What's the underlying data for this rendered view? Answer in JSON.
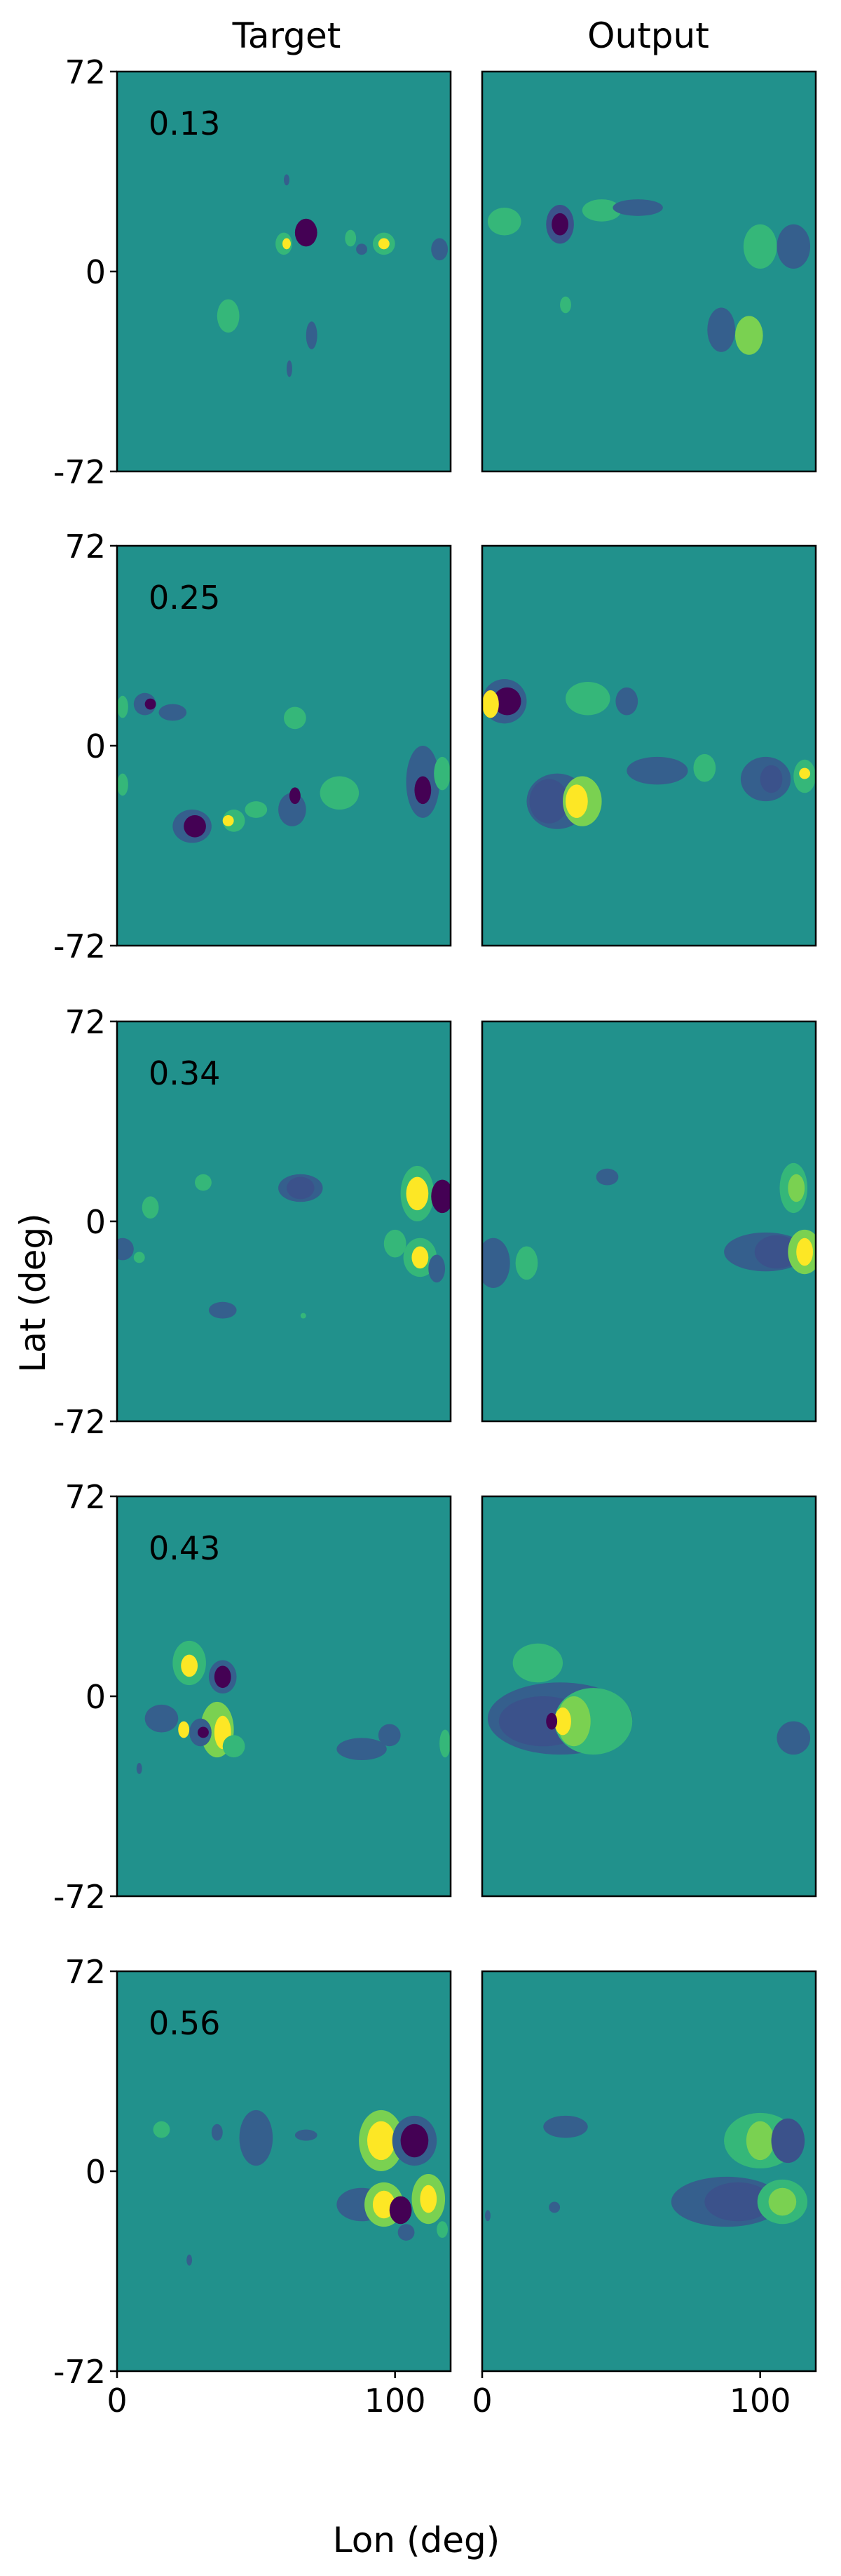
{
  "figure": {
    "column_titles": [
      "Target",
      "Output"
    ],
    "xlabel": "Lon (deg)",
    "ylabel": "Lat (deg)",
    "colors": {
      "background": "#21918c",
      "dark": "#440154",
      "blue_dark": "#3b528b",
      "blue": "#355f8d",
      "green": "#35b779",
      "lime": "#7ad151",
      "yellow": "#fde725",
      "frame": "#000000"
    }
  },
  "chart_data": {
    "type": "heatmap",
    "colormap": "viridis",
    "xlim": [
      0,
      120
    ],
    "ylim": [
      -72,
      72
    ],
    "xticks": [
      "0",
      "100"
    ],
    "yticks": [
      "72",
      "0",
      "-72"
    ],
    "rows": [
      {
        "label": "0.13",
        "target": [
          {
            "x": 68,
            "y": 14,
            "rx": 4,
            "ry": 5,
            "level": "dark"
          },
          {
            "x": 60,
            "y": 10,
            "rx": 3,
            "ry": 4,
            "level": "green"
          },
          {
            "x": 61,
            "y": 10,
            "rx": 1.5,
            "ry": 2,
            "level": "yellow"
          },
          {
            "x": 96,
            "y": 10,
            "rx": 4,
            "ry": 4,
            "level": "green"
          },
          {
            "x": 96,
            "y": 10,
            "rx": 2,
            "ry": 2,
            "level": "yellow"
          },
          {
            "x": 84,
            "y": 12,
            "rx": 2,
            "ry": 3,
            "level": "green"
          },
          {
            "x": 88,
            "y": 8,
            "rx": 2,
            "ry": 2,
            "level": "blue"
          },
          {
            "x": 116,
            "y": 8,
            "rx": 3,
            "ry": 4,
            "level": "blue"
          },
          {
            "x": 61,
            "y": 33,
            "rx": 1,
            "ry": 2,
            "level": "blue"
          },
          {
            "x": 40,
            "y": -16,
            "rx": 4,
            "ry": 6,
            "level": "green"
          },
          {
            "x": 70,
            "y": -23,
            "rx": 2,
            "ry": 5,
            "level": "blue"
          },
          {
            "x": 62,
            "y": -35,
            "rx": 1,
            "ry": 3,
            "level": "blue"
          }
        ],
        "output": [
          {
            "x": 8,
            "y": 18,
            "rx": 6,
            "ry": 5,
            "level": "green"
          },
          {
            "x": 28,
            "y": 17,
            "rx": 5,
            "ry": 7,
            "level": "blue_dark"
          },
          {
            "x": 28,
            "y": 17,
            "rx": 3,
            "ry": 4,
            "level": "dark"
          },
          {
            "x": 43,
            "y": 22,
            "rx": 7,
            "ry": 4,
            "level": "green"
          },
          {
            "x": 56,
            "y": 23,
            "rx": 9,
            "ry": 3,
            "level": "blue"
          },
          {
            "x": 100,
            "y": 9,
            "rx": 6,
            "ry": 8,
            "level": "green"
          },
          {
            "x": 112,
            "y": 9,
            "rx": 6,
            "ry": 8,
            "level": "blue"
          },
          {
            "x": 30,
            "y": -12,
            "rx": 2,
            "ry": 3,
            "level": "green"
          },
          {
            "x": 86,
            "y": -21,
            "rx": 5,
            "ry": 8,
            "level": "blue"
          },
          {
            "x": 96,
            "y": -23,
            "rx": 5,
            "ry": 7,
            "level": "lime"
          }
        ]
      },
      {
        "label": "0.25",
        "target": [
          {
            "x": 10,
            "y": 15,
            "rx": 4,
            "ry": 4,
            "level": "blue"
          },
          {
            "x": 12,
            "y": 15,
            "rx": 2,
            "ry": 2,
            "level": "dark"
          },
          {
            "x": 20,
            "y": 12,
            "rx": 5,
            "ry": 3,
            "level": "blue"
          },
          {
            "x": 2,
            "y": 14,
            "rx": 2,
            "ry": 4,
            "level": "green"
          },
          {
            "x": 64,
            "y": 10,
            "rx": 4,
            "ry": 4,
            "level": "green"
          },
          {
            "x": 2,
            "y": -14,
            "rx": 2,
            "ry": 4,
            "level": "green"
          },
          {
            "x": 27,
            "y": -29,
            "rx": 7,
            "ry": 6,
            "level": "blue"
          },
          {
            "x": 28,
            "y": -29,
            "rx": 4,
            "ry": 4,
            "level": "dark"
          },
          {
            "x": 42,
            "y": -27,
            "rx": 4,
            "ry": 4,
            "level": "green"
          },
          {
            "x": 40,
            "y": -27,
            "rx": 2,
            "ry": 2,
            "level": "yellow"
          },
          {
            "x": 50,
            "y": -23,
            "rx": 4,
            "ry": 3,
            "level": "green"
          },
          {
            "x": 63,
            "y": -23,
            "rx": 5,
            "ry": 6,
            "level": "blue"
          },
          {
            "x": 64,
            "y": -18,
            "rx": 2,
            "ry": 3,
            "level": "dark"
          },
          {
            "x": 80,
            "y": -17,
            "rx": 7,
            "ry": 6,
            "level": "green"
          },
          {
            "x": 110,
            "y": -13,
            "rx": 6,
            "ry": 13,
            "level": "blue"
          },
          {
            "x": 110,
            "y": -16,
            "rx": 3,
            "ry": 5,
            "level": "dark"
          },
          {
            "x": 117,
            "y": -10,
            "rx": 3,
            "ry": 6,
            "level": "green"
          }
        ],
        "output": [
          {
            "x": 8,
            "y": 16,
            "rx": 8,
            "ry": 8,
            "level": "blue"
          },
          {
            "x": 9,
            "y": 16,
            "rx": 5,
            "ry": 5,
            "level": "dark"
          },
          {
            "x": 3,
            "y": 15,
            "rx": 3,
            "ry": 5,
            "level": "yellow"
          },
          {
            "x": 38,
            "y": 17,
            "rx": 8,
            "ry": 6,
            "level": "green"
          },
          {
            "x": 52,
            "y": 16,
            "rx": 4,
            "ry": 5,
            "level": "blue"
          },
          {
            "x": 27,
            "y": -20,
            "rx": 11,
            "ry": 10,
            "level": "blue"
          },
          {
            "x": 24,
            "y": -20,
            "rx": 7,
            "ry": 8,
            "level": "blue_dark"
          },
          {
            "x": 36,
            "y": -20,
            "rx": 7,
            "ry": 9,
            "level": "lime"
          },
          {
            "x": 34,
            "y": -20,
            "rx": 4,
            "ry": 6,
            "level": "yellow"
          },
          {
            "x": 63,
            "y": -9,
            "rx": 11,
            "ry": 5,
            "level": "blue"
          },
          {
            "x": 80,
            "y": -8,
            "rx": 4,
            "ry": 5,
            "level": "green"
          },
          {
            "x": 102,
            "y": -12,
            "rx": 9,
            "ry": 8,
            "level": "blue"
          },
          {
            "x": 104,
            "y": -12,
            "rx": 4,
            "ry": 5,
            "level": "blue_dark"
          },
          {
            "x": 116,
            "y": -11,
            "rx": 4,
            "ry": 6,
            "level": "green"
          },
          {
            "x": 116,
            "y": -10,
            "rx": 2,
            "ry": 2,
            "level": "yellow"
          }
        ]
      },
      {
        "label": "0.34",
        "target": [
          {
            "x": 12,
            "y": 5,
            "rx": 3,
            "ry": 4,
            "level": "green"
          },
          {
            "x": 31,
            "y": 14,
            "rx": 3,
            "ry": 3,
            "level": "green"
          },
          {
            "x": 66,
            "y": 12,
            "rx": 8,
            "ry": 5,
            "level": "blue"
          },
          {
            "x": 66,
            "y": 12,
            "rx": 5,
            "ry": 4,
            "level": "blue_dark"
          },
          {
            "x": 108,
            "y": 10,
            "rx": 6,
            "ry": 10,
            "level": "green"
          },
          {
            "x": 108,
            "y": 10,
            "rx": 4,
            "ry": 6,
            "level": "yellow"
          },
          {
            "x": 117,
            "y": 9,
            "rx": 4,
            "ry": 6,
            "level": "dark"
          },
          {
            "x": 100,
            "y": -8,
            "rx": 4,
            "ry": 5,
            "level": "green"
          },
          {
            "x": 109,
            "y": -13,
            "rx": 6,
            "ry": 7,
            "level": "green"
          },
          {
            "x": 109,
            "y": -13,
            "rx": 3,
            "ry": 4,
            "level": "yellow"
          },
          {
            "x": 115,
            "y": -17,
            "rx": 3,
            "ry": 5,
            "level": "blue"
          },
          {
            "x": 2,
            "y": -10,
            "rx": 4,
            "ry": 4,
            "level": "blue"
          },
          {
            "x": 8,
            "y": -13,
            "rx": 2,
            "ry": 2,
            "level": "green"
          },
          {
            "x": 38,
            "y": -32,
            "rx": 5,
            "ry": 3,
            "level": "blue"
          },
          {
            "x": 67,
            "y": -34,
            "rx": 1,
            "ry": 1,
            "level": "green"
          }
        ],
        "output": [
          {
            "x": 45,
            "y": 16,
            "rx": 4,
            "ry": 3,
            "level": "blue"
          },
          {
            "x": 112,
            "y": 12,
            "rx": 5,
            "ry": 9,
            "level": "green"
          },
          {
            "x": 113,
            "y": 12,
            "rx": 3,
            "ry": 5,
            "level": "lime"
          },
          {
            "x": 4,
            "y": -15,
            "rx": 6,
            "ry": 9,
            "level": "blue"
          },
          {
            "x": 16,
            "y": -15,
            "rx": 4,
            "ry": 6,
            "level": "green"
          },
          {
            "x": 102,
            "y": -11,
            "rx": 15,
            "ry": 7,
            "level": "blue"
          },
          {
            "x": 106,
            "y": -11,
            "rx": 8,
            "ry": 6,
            "level": "blue_dark"
          },
          {
            "x": 116,
            "y": -11,
            "rx": 6,
            "ry": 8,
            "level": "lime"
          },
          {
            "x": 116,
            "y": -11,
            "rx": 3,
            "ry": 5,
            "level": "yellow"
          }
        ]
      },
      {
        "label": "0.43",
        "target": [
          {
            "x": 26,
            "y": 12,
            "rx": 6,
            "ry": 8,
            "level": "green"
          },
          {
            "x": 26,
            "y": 11,
            "rx": 3,
            "ry": 4,
            "level": "yellow"
          },
          {
            "x": 38,
            "y": 7,
            "rx": 5,
            "ry": 6,
            "level": "blue"
          },
          {
            "x": 38,
            "y": 7,
            "rx": 3,
            "ry": 4,
            "level": "dark"
          },
          {
            "x": 16,
            "y": -8,
            "rx": 6,
            "ry": 5,
            "level": "blue"
          },
          {
            "x": 36,
            "y": -12,
            "rx": 6,
            "ry": 10,
            "level": "lime"
          },
          {
            "x": 38,
            "y": -13,
            "rx": 3,
            "ry": 6,
            "level": "yellow"
          },
          {
            "x": 30,
            "y": -13,
            "rx": 4,
            "ry": 5,
            "level": "blue"
          },
          {
            "x": 31,
            "y": -13,
            "rx": 2,
            "ry": 2,
            "level": "dark"
          },
          {
            "x": 24,
            "y": -12,
            "rx": 2,
            "ry": 3,
            "level": "yellow"
          },
          {
            "x": 42,
            "y": -18,
            "rx": 4,
            "ry": 4,
            "level": "green"
          },
          {
            "x": 8,
            "y": -26,
            "rx": 1,
            "ry": 2,
            "level": "blue"
          },
          {
            "x": 88,
            "y": -19,
            "rx": 9,
            "ry": 4,
            "level": "blue"
          },
          {
            "x": 98,
            "y": -14,
            "rx": 4,
            "ry": 4,
            "level": "blue"
          },
          {
            "x": 118,
            "y": -17,
            "rx": 2,
            "ry": 5,
            "level": "green"
          }
        ],
        "output": [
          {
            "x": 20,
            "y": 12,
            "rx": 9,
            "ry": 7,
            "level": "green"
          },
          {
            "x": 28,
            "y": -8,
            "rx": 26,
            "ry": 13,
            "level": "blue"
          },
          {
            "x": 22,
            "y": -9,
            "rx": 16,
            "ry": 9,
            "level": "blue_dark"
          },
          {
            "x": 40,
            "y": -9,
            "rx": 14,
            "ry": 12,
            "level": "green"
          },
          {
            "x": 33,
            "y": -9,
            "rx": 6,
            "ry": 9,
            "level": "lime"
          },
          {
            "x": 29,
            "y": -9,
            "rx": 3,
            "ry": 5,
            "level": "yellow"
          },
          {
            "x": 25,
            "y": -9,
            "rx": 2,
            "ry": 3,
            "level": "dark"
          },
          {
            "x": 112,
            "y": -15,
            "rx": 6,
            "ry": 6,
            "level": "blue"
          }
        ]
      },
      {
        "label": "0.56",
        "target": [
          {
            "x": 16,
            "y": 15,
            "rx": 3,
            "ry": 3,
            "level": "green"
          },
          {
            "x": 36,
            "y": 14,
            "rx": 2,
            "ry": 3,
            "level": "blue"
          },
          {
            "x": 50,
            "y": 12,
            "rx": 6,
            "ry": 10,
            "level": "blue"
          },
          {
            "x": 68,
            "y": 13,
            "rx": 4,
            "ry": 2,
            "level": "blue"
          },
          {
            "x": 95,
            "y": 11,
            "rx": 8,
            "ry": 11,
            "level": "lime"
          },
          {
            "x": 95,
            "y": 11,
            "rx": 5,
            "ry": 7,
            "level": "yellow"
          },
          {
            "x": 107,
            "y": 11,
            "rx": 8,
            "ry": 9,
            "level": "blue"
          },
          {
            "x": 107,
            "y": 11,
            "rx": 5,
            "ry": 6,
            "level": "dark"
          },
          {
            "x": 88,
            "y": -12,
            "rx": 9,
            "ry": 6,
            "level": "blue"
          },
          {
            "x": 96,
            "y": -12,
            "rx": 7,
            "ry": 8,
            "level": "lime"
          },
          {
            "x": 96,
            "y": -12,
            "rx": 4,
            "ry": 5,
            "level": "yellow"
          },
          {
            "x": 102,
            "y": -14,
            "rx": 4,
            "ry": 5,
            "level": "dark"
          },
          {
            "x": 112,
            "y": -10,
            "rx": 6,
            "ry": 9,
            "level": "lime"
          },
          {
            "x": 112,
            "y": -10,
            "rx": 3,
            "ry": 5,
            "level": "yellow"
          },
          {
            "x": 104,
            "y": -22,
            "rx": 3,
            "ry": 3,
            "level": "blue"
          },
          {
            "x": 117,
            "y": -21,
            "rx": 2,
            "ry": 3,
            "level": "green"
          },
          {
            "x": 26,
            "y": -32,
            "rx": 1,
            "ry": 2,
            "level": "blue"
          }
        ],
        "output": [
          {
            "x": 30,
            "y": 16,
            "rx": 8,
            "ry": 4,
            "level": "blue"
          },
          {
            "x": 100,
            "y": 11,
            "rx": 13,
            "ry": 10,
            "level": "green"
          },
          {
            "x": 100,
            "y": 11,
            "rx": 5,
            "ry": 7,
            "level": "lime"
          },
          {
            "x": 110,
            "y": 11,
            "rx": 6,
            "ry": 8,
            "level": "blue_dark"
          },
          {
            "x": 88,
            "y": -11,
            "rx": 20,
            "ry": 9,
            "level": "blue"
          },
          {
            "x": 92,
            "y": -11,
            "rx": 12,
            "ry": 7,
            "level": "blue_dark"
          },
          {
            "x": 108,
            "y": -11,
            "rx": 9,
            "ry": 8,
            "level": "green"
          },
          {
            "x": 108,
            "y": -11,
            "rx": 5,
            "ry": 5,
            "level": "lime"
          },
          {
            "x": 2,
            "y": -16,
            "rx": 1,
            "ry": 2,
            "level": "blue"
          },
          {
            "x": 26,
            "y": -13,
            "rx": 2,
            "ry": 2,
            "level": "blue"
          }
        ]
      }
    ]
  }
}
